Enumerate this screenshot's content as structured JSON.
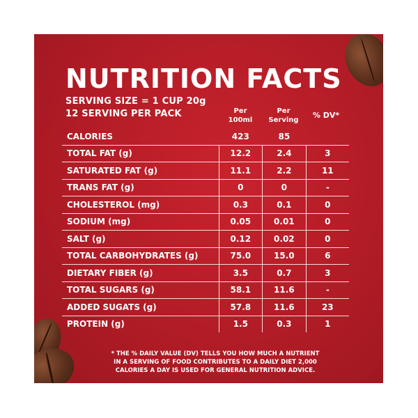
{
  "title": "NUTRITION FACTS",
  "serving_size": "SERVING SIZE = 1 CUP 20g",
  "servings_per_pack": "12 SERVING PER PACK",
  "columns": {
    "per_100ml_line1": "Per",
    "per_100ml_line2": "100ml",
    "per_serving_line1": "Per",
    "per_serving_line2": "Serving",
    "dv": "% DV*"
  },
  "rows": [
    {
      "label": "CALORIES",
      "per100": "423",
      "serving": "85",
      "dv": ""
    },
    {
      "label": "TOTAL FAT (g)",
      "per100": "12.2",
      "serving": "2.4",
      "dv": "3"
    },
    {
      "label": "SATURATED FAT (g)",
      "per100": "11.1",
      "serving": "2.2",
      "dv": "11"
    },
    {
      "label": "TRANS FAT (g)",
      "per100": "0",
      "serving": "0",
      "dv": "-"
    },
    {
      "label": "CHOLESTEROL (mg)",
      "per100": "0.3",
      "serving": "0.1",
      "dv": "0"
    },
    {
      "label": "SODIUM (mg)",
      "per100": "0.05",
      "serving": "0.01",
      "dv": "0"
    },
    {
      "label": "SALT (g)",
      "per100": "0.12",
      "serving": "0.02",
      "dv": "0"
    },
    {
      "label": "TOTAL CARBOHYDRATES (g)",
      "per100": "75.0",
      "serving": "15.0",
      "dv": "6"
    },
    {
      "label": "DIETARY FIBER (g)",
      "per100": "3.5",
      "serving": "0.7",
      "dv": "3"
    },
    {
      "label": "TOTAL SUGARS (g)",
      "per100": "58.1",
      "serving": "11.6",
      "dv": "-"
    },
    {
      "label": "ADDED SUGATS (g)",
      "per100": "57.8",
      "serving": "11.6",
      "dv": "23"
    },
    {
      "label": "PROTEIN (g)",
      "per100": "1.5",
      "serving": "0.3",
      "dv": "1"
    }
  ],
  "footnote": {
    "line1": "* THE % DAILY VALUE (DV) TELLS YOU HOW MUCH A NUTRIENT",
    "line2": "IN A SERVING OF FOOD CONTRIBUTES TO A DAILY DIET 2,000",
    "line3": "CALORIES A DAY IS USED FOR GENERAL NUTRITION ADVICE."
  },
  "colors": {
    "panel_red": "#b21c26",
    "text": "#ffffff",
    "coffee_bean": "#5a2f1c"
  }
}
